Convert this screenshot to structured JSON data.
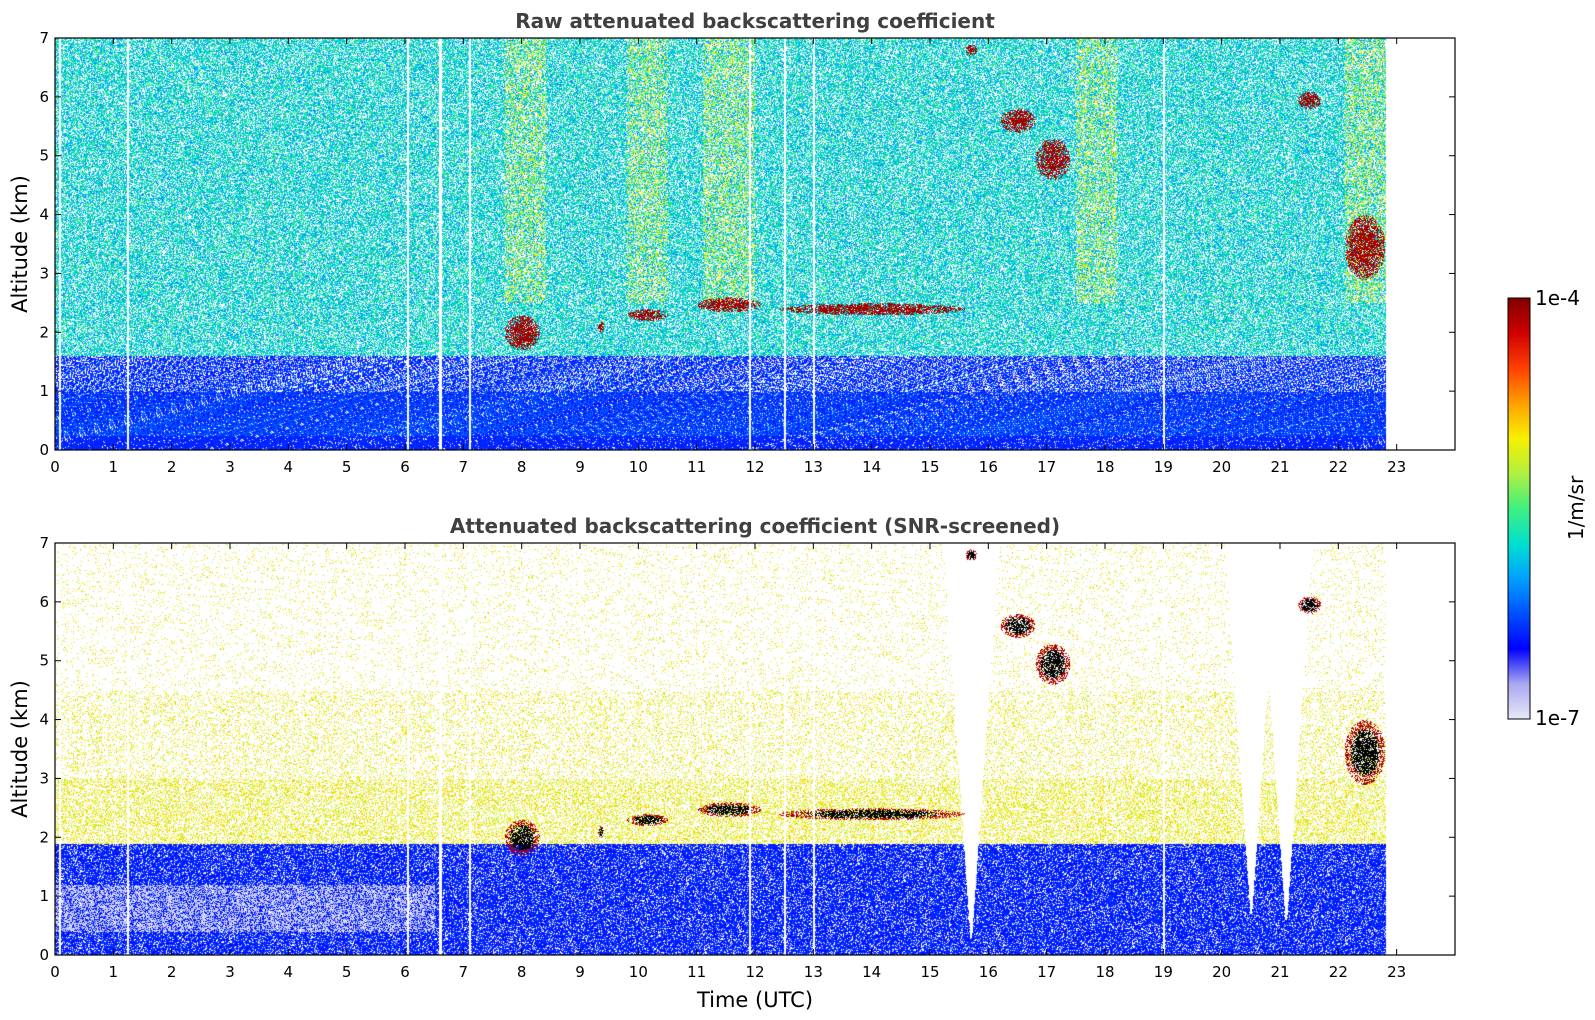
{
  "chart_data": [
    {
      "type": "heatmap",
      "title": "Raw attenuated backscattering coefficient",
      "xlabel": "",
      "ylabel": "Altitude (km)",
      "xlim": [
        0,
        24
      ],
      "ylim": [
        0,
        7
      ],
      "x_ticks": [
        "0",
        "1",
        "2",
        "3",
        "4",
        "5",
        "6",
        "7",
        "8",
        "9",
        "10",
        "11",
        "12",
        "13",
        "14",
        "15",
        "16",
        "17",
        "18",
        "19",
        "20",
        "21",
        "22",
        "23"
      ],
      "y_ticks": [
        "0",
        "1",
        "2",
        "3",
        "4",
        "5",
        "6",
        "7"
      ],
      "data_end_time": 22.8,
      "gap_times": [
        0.08,
        1.25,
        6.05,
        6.6,
        7.1,
        11.9,
        12.5,
        13.0,
        19.0
      ],
      "features": [
        {
          "name": "cloud",
          "x": [
            7.7,
            8.3
          ],
          "y": [
            1.7,
            2.3
          ],
          "level": "high"
        },
        {
          "name": "cloud",
          "x": [
            9.3,
            9.4
          ],
          "y": [
            2.0,
            2.2
          ],
          "level": "high"
        },
        {
          "name": "cloud",
          "x": [
            9.8,
            10.5
          ],
          "y": [
            2.2,
            2.4
          ],
          "level": "high"
        },
        {
          "name": "cloud",
          "x": [
            11.0,
            12.1
          ],
          "y": [
            2.35,
            2.6
          ],
          "level": "high"
        },
        {
          "name": "cloud",
          "x": [
            12.4,
            15.6
          ],
          "y": [
            2.3,
            2.5
          ],
          "level": "high"
        },
        {
          "name": "cloud",
          "x": [
            15.6,
            15.8
          ],
          "y": [
            6.7,
            6.9
          ],
          "level": "high"
        },
        {
          "name": "cloud",
          "x": [
            16.2,
            16.8
          ],
          "y": [
            5.4,
            5.8
          ],
          "level": "high"
        },
        {
          "name": "cloud",
          "x": [
            16.8,
            17.4
          ],
          "y": [
            4.6,
            5.3
          ],
          "level": "high"
        },
        {
          "name": "cloud",
          "x": [
            21.3,
            21.7
          ],
          "y": [
            5.8,
            6.1
          ],
          "level": "high"
        },
        {
          "name": "cloud",
          "x": [
            22.1,
            22.8
          ],
          "y": [
            2.9,
            4.0
          ],
          "level": "high"
        }
      ]
    },
    {
      "type": "heatmap",
      "title": "Attenuated backscattering coefficient (SNR-screened)",
      "xlabel": "Time (UTC)",
      "ylabel": "Altitude (km)",
      "xlim": [
        0,
        24
      ],
      "ylim": [
        0,
        7
      ],
      "x_ticks": [
        "0",
        "1",
        "2",
        "3",
        "4",
        "5",
        "6",
        "7",
        "8",
        "9",
        "10",
        "11",
        "12",
        "13",
        "14",
        "15",
        "16",
        "17",
        "18",
        "19",
        "20",
        "21",
        "22",
        "23"
      ],
      "y_ticks": [
        "0",
        "1",
        "2",
        "3",
        "4",
        "5",
        "6",
        "7"
      ],
      "data_end_time": 22.8,
      "screened_gaps": [
        15.7,
        20.5,
        21.1
      ]
    }
  ],
  "colorbar": {
    "label": "1/m/sr",
    "max_label": "1e-4",
    "min_label": "1e-7",
    "scale": "log",
    "range": [
      1e-07,
      0.0001
    ],
    "colors": [
      "#e8e8f8",
      "#a8a8f0",
      "#0000ff",
      "#0050ff",
      "#00a0ff",
      "#00e0d0",
      "#40f080",
      "#b0f040",
      "#f8f000",
      "#ffa000",
      "#ff4000",
      "#d00000",
      "#800000"
    ]
  }
}
